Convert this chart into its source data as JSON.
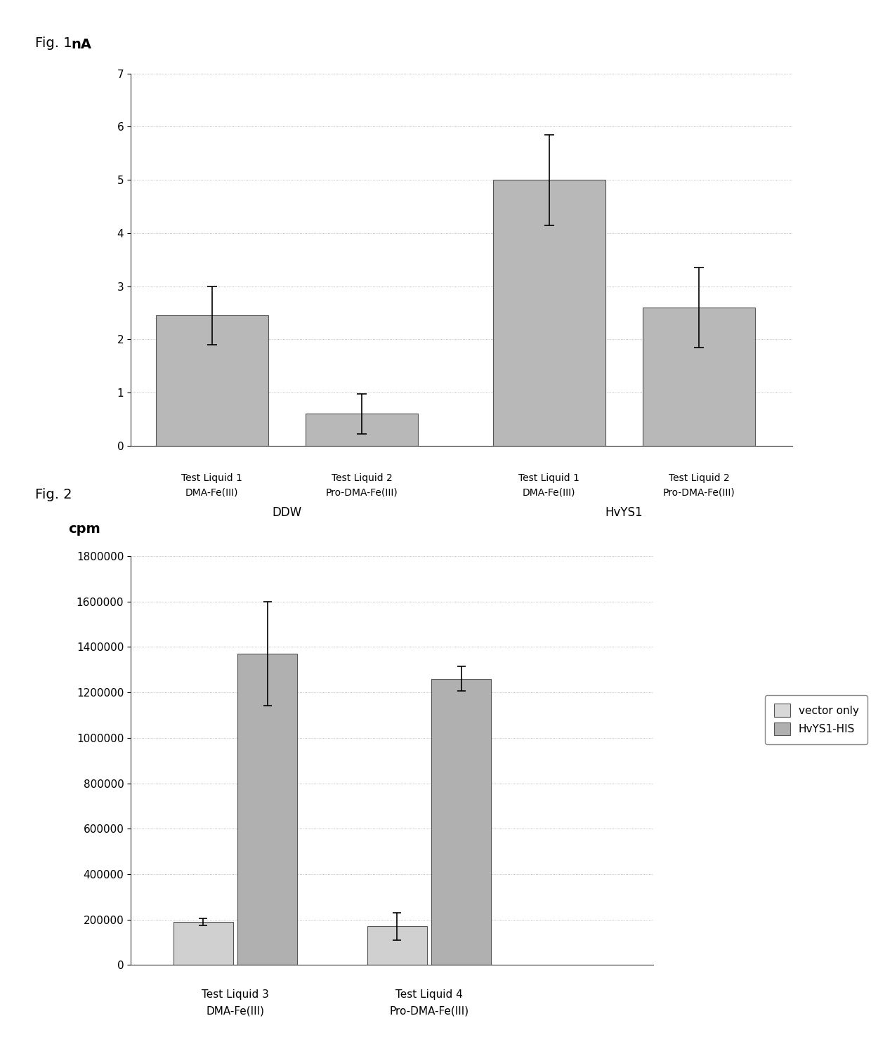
{
  "fig1": {
    "title_label": "Fig. 1",
    "ylabel": "nA",
    "ylim": [
      0,
      7
    ],
    "yticks": [
      0,
      1,
      2,
      3,
      4,
      5,
      6,
      7
    ],
    "bar_groups": [
      {
        "x_center": 1.0,
        "label_line1": "Test Liquid 1",
        "label_line2": "DMA-Fe(III)",
        "group_label": "DDW",
        "value": 2.45,
        "error": 0.55
      },
      {
        "x_center": 2.2,
        "label_line1": "Test Liquid 2",
        "label_line2": "Pro-DMA-Fe(III)",
        "group_label": "DDW",
        "value": 0.6,
        "error": 0.38
      },
      {
        "x_center": 3.7,
        "label_line1": "Test Liquid 1",
        "label_line2": "DMA-Fe(III)",
        "group_label": "HvYS1",
        "value": 5.0,
        "error": 0.85
      },
      {
        "x_center": 4.9,
        "label_line1": "Test Liquid 2",
        "label_line2": "Pro-DMA-Fe(III)",
        "group_label": "HvYS1",
        "value": 2.6,
        "error": 0.75
      }
    ],
    "group_labels": [
      {
        "x": 1.6,
        "label": "DDW"
      },
      {
        "x": 4.3,
        "label": "HvYS1"
      }
    ],
    "bar_width": 0.9,
    "xlim": [
      0.35,
      5.65
    ],
    "bar_color": "#b8b8b8",
    "bar_edgecolor": "#555555"
  },
  "fig2": {
    "title_label": "Fig. 2",
    "ylabel": "cpm",
    "ylim": [
      0,
      1800000
    ],
    "yticks": [
      0,
      200000,
      400000,
      600000,
      800000,
      1000000,
      1200000,
      1400000,
      1600000,
      1800000
    ],
    "bar_groups": [
      {
        "x_center": 1.0,
        "group": "Test Liquid 3",
        "group_sub": "DMA-Fe(III)",
        "series": [
          {
            "label": "vector only",
            "value": 190000,
            "error": 15000,
            "color": "#d0d0d0"
          },
          {
            "label": "HvYS1-HIS",
            "value": 1370000,
            "error": 230000,
            "color": "#b0b0b0"
          }
        ]
      },
      {
        "x_center": 2.3,
        "group": "Test Liquid 4",
        "group_sub": "Pro-DMA-Fe(III)",
        "series": [
          {
            "label": "vector only",
            "value": 170000,
            "error": 60000,
            "color": "#d0d0d0"
          },
          {
            "label": "HvYS1-HIS",
            "value": 1260000,
            "error": 55000,
            "color": "#b0b0b0"
          }
        ]
      }
    ],
    "bar_width": 0.4,
    "xlim": [
      0.3,
      3.8
    ],
    "legend": [
      {
        "label": "vector only",
        "color": "#d8d8d8"
      },
      {
        "label": "HvYS1-HIS",
        "color": "#b0b0b0"
      }
    ]
  },
  "background_color": "#ffffff",
  "grid_color": "#aaaaaa",
  "text_color": "#000000",
  "fig_label_fontsize": 14,
  "axis_label_fontsize": 13,
  "tick_fontsize": 11,
  "bar_label_fontsize": 10,
  "group_label_fontsize": 12
}
